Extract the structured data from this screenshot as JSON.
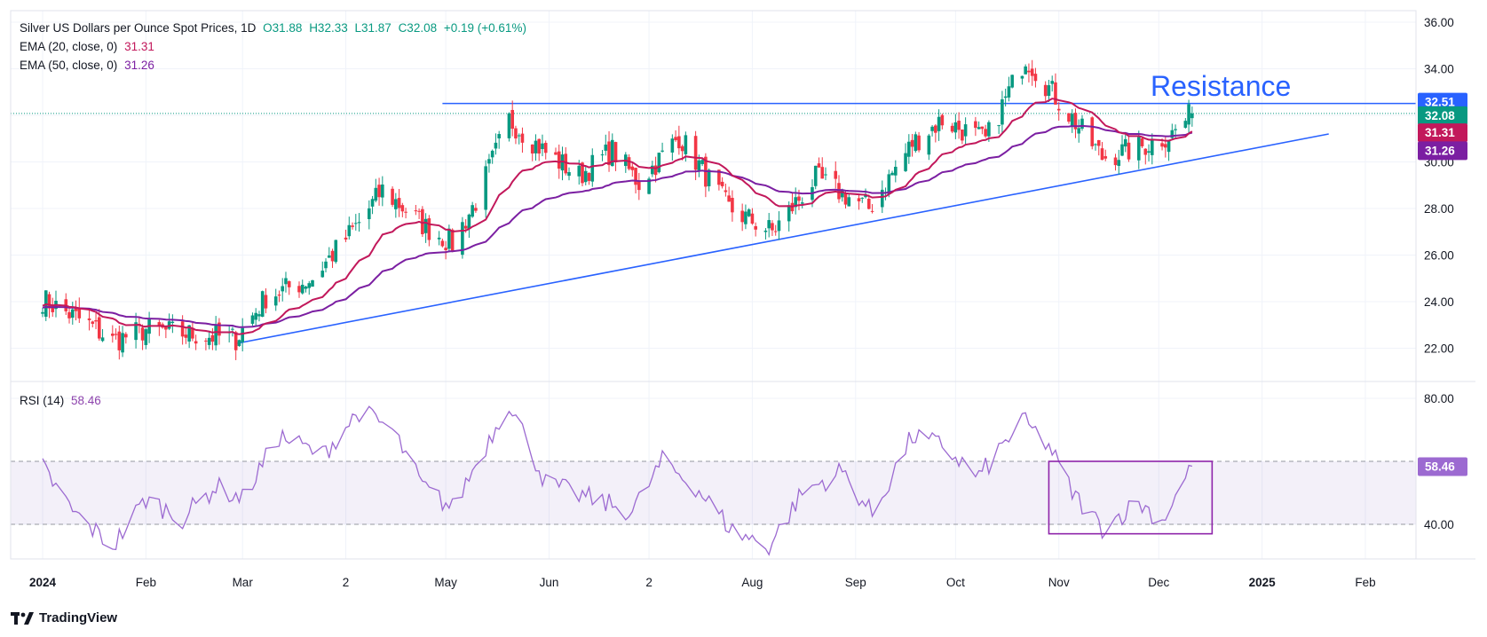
{
  "legend": {
    "title": "Silver US Dollars per Ounce Spot Prices, 1D",
    "open": "O31.88",
    "high": "H32.33",
    "low": "L31.87",
    "close": "C32.08",
    "change": "+0.19 (+0.61%)",
    "ema20_label": "EMA (20, close, 0)",
    "ema20_value": "31.31",
    "ema50_label": "EMA (50, close, 0)",
    "ema50_value": "31.26",
    "rsi_label": "RSI (14)",
    "rsi_value": "58.46"
  },
  "brand": "TradingView",
  "annotation": "Resistance",
  "colors": {
    "up": "#089981",
    "down": "#f23645",
    "ema20": "#c2185b",
    "ema50": "#7b1fa2",
    "rsi": "#9c6ad1",
    "trendline": "#2962ff"
  },
  "chart_data": [
    {
      "type": "candlestick",
      "title": "Silver US Dollars per Ounce Spot Prices, 1D",
      "x_ticks": [
        "2024",
        "Feb",
        "Mar",
        "2",
        "May",
        "Jun",
        "2",
        "Aug",
        "Sep",
        "Oct",
        "Nov",
        "Dec",
        "2025",
        "Feb"
      ],
      "y_ticks": [
        "22.00",
        "24.00",
        "26.00",
        "28.00",
        "30.00",
        "32.00",
        "34.00",
        "36.00"
      ],
      "ylim": [
        20.9,
        37.0
      ],
      "price_labels": {
        "resistance": "32.51",
        "last": "32.08",
        "ema20": "31.31",
        "ema50": "31.26"
      },
      "resistance_level": 32.51,
      "support_trendline": [
        [
          "2024-02-28",
          22.2
        ],
        [
          "2025-01-21",
          31.2
        ]
      ],
      "series": [
        {
          "name": "EMA (20, close, 0)",
          "last": 31.31
        },
        {
          "name": "EMA (50, close, 0)",
          "last": 31.26
        }
      ],
      "approx_closes": [
        [
          "2024-01-01",
          24.1
        ],
        [
          "2024-01-15",
          23.0
        ],
        [
          "2024-01-22",
          22.3
        ],
        [
          "2024-02-01",
          22.8
        ],
        [
          "2024-02-15",
          22.6
        ],
        [
          "2024-02-28",
          22.4
        ],
        [
          "2024-03-08",
          24.2
        ],
        [
          "2024-03-22",
          25.0
        ],
        [
          "2024-04-05",
          27.4
        ],
        [
          "2024-04-12",
          28.8
        ],
        [
          "2024-04-25",
          27.2
        ],
        [
          "2024-05-03",
          26.5
        ],
        [
          "2024-05-10",
          28.3
        ],
        [
          "2024-05-20",
          31.8
        ],
        [
          "2024-05-31",
          30.4
        ],
        [
          "2024-06-10",
          29.4
        ],
        [
          "2024-06-20",
          30.5
        ],
        [
          "2024-06-28",
          29.1
        ],
        [
          "2024-07-10",
          31.1
        ],
        [
          "2024-07-25",
          28.0
        ],
        [
          "2024-08-07",
          27.0
        ],
        [
          "2024-08-20",
          29.3
        ],
        [
          "2024-09-05",
          28.0
        ],
        [
          "2024-09-18",
          30.8
        ],
        [
          "2024-09-27",
          31.8
        ],
        [
          "2024-10-10",
          30.9
        ],
        [
          "2024-10-22",
          34.5
        ],
        [
          "2024-10-31",
          32.8
        ],
        [
          "2024-11-14",
          30.2
        ],
        [
          "2024-11-25",
          30.6
        ],
        [
          "2024-12-05",
          31.2
        ],
        [
          "2024-12-11",
          32.08
        ]
      ]
    },
    {
      "type": "line",
      "title": "RSI (14)",
      "y_ticks": [
        "40.00",
        "80.00"
      ],
      "ylim": [
        25,
        85
      ],
      "bands": [
        40,
        60
      ],
      "last": 58.46,
      "highlight_box": [
        [
          "2024-10-29",
          60
        ],
        [
          "2024-12-17",
          37
        ]
      ],
      "values": [
        [
          "2024-01-01",
          58
        ],
        [
          "2024-01-10",
          44
        ],
        [
          "2024-01-22",
          33
        ],
        [
          "2024-02-01",
          48
        ],
        [
          "2024-02-12",
          42
        ],
        [
          "2024-02-22",
          52
        ],
        [
          "2024-03-01",
          48
        ],
        [
          "2024-03-12",
          68
        ],
        [
          "2024-03-25",
          62
        ],
        [
          "2024-04-05",
          76
        ],
        [
          "2024-04-15",
          70
        ],
        [
          "2024-04-24",
          52
        ],
        [
          "2024-05-03",
          45
        ],
        [
          "2024-05-20",
          79
        ],
        [
          "2024-05-31",
          53
        ],
        [
          "2024-06-14",
          48
        ],
        [
          "2024-06-26",
          44
        ],
        [
          "2024-07-05",
          60
        ],
        [
          "2024-07-15",
          52
        ],
        [
          "2024-07-26",
          38
        ],
        [
          "2024-08-06",
          33
        ],
        [
          "2024-08-16",
          50
        ],
        [
          "2024-08-28",
          57
        ],
        [
          "2024-09-06",
          43
        ],
        [
          "2024-09-18",
          68
        ],
        [
          "2024-09-27",
          65
        ],
        [
          "2024-10-08",
          55
        ],
        [
          "2024-10-21",
          73
        ],
        [
          "2024-10-29",
          65
        ],
        [
          "2024-11-05",
          50
        ],
        [
          "2024-11-14",
          39
        ],
        [
          "2024-11-25",
          47
        ],
        [
          "2024-12-02",
          41
        ],
        [
          "2024-12-11",
          58.46
        ]
      ]
    }
  ]
}
